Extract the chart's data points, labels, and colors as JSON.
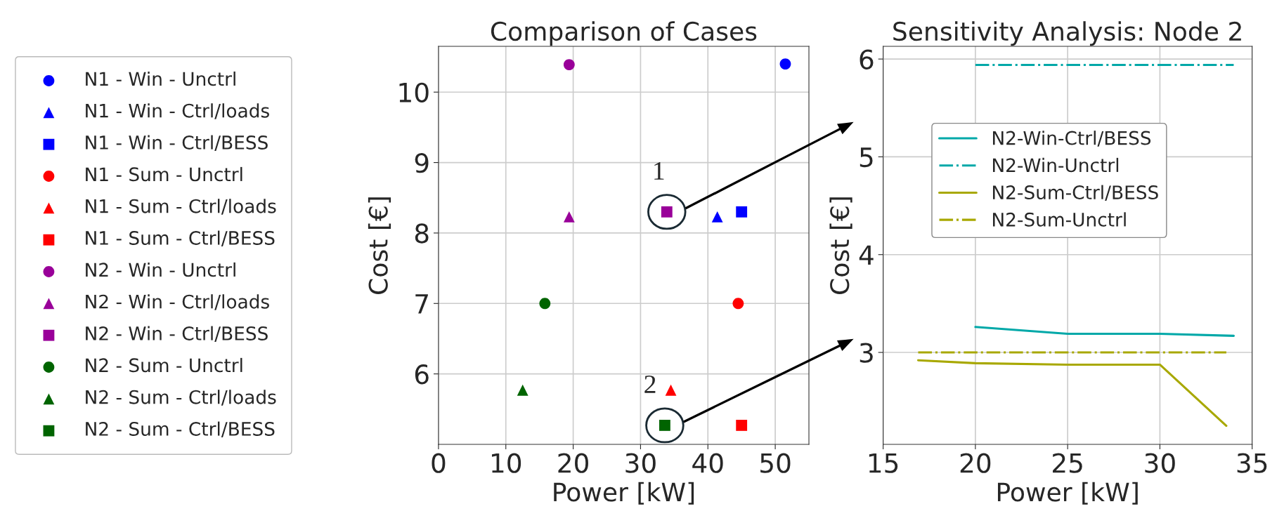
{
  "chart_data": [
    {
      "type": "scatter",
      "title": "Comparison of Cases",
      "xlabel": "Power [kW]",
      "ylabel": "Cost [€]",
      "xlim": [
        0,
        55
      ],
      "xticks": [
        0,
        10,
        20,
        30,
        40,
        50
      ],
      "ylim": [
        5.0,
        10.65
      ],
      "yticks": [
        6,
        7,
        8,
        9,
        10
      ],
      "grid": true,
      "legend": "left",
      "series": [
        {
          "name": "N1 - Win - Unctrl",
          "color": "#0000ff",
          "marker": "circle",
          "x": [
            51.5
          ],
          "values": [
            10.4
          ]
        },
        {
          "name": "N1 - Win - Ctrl/loads",
          "color": "#0000ff",
          "marker": "triangle",
          "x": [
            41.4
          ],
          "values": [
            8.23
          ]
        },
        {
          "name": "N1 - Win - Ctrl/BESS",
          "color": "#0000ff",
          "marker": "square",
          "x": [
            45.0
          ],
          "values": [
            8.3
          ]
        },
        {
          "name": "N1 - Sum - Unctrl",
          "color": "#ff0000",
          "marker": "circle",
          "x": [
            44.5
          ],
          "values": [
            7.0
          ]
        },
        {
          "name": "N1 - Sum - Ctrl/loads",
          "color": "#ff0000",
          "marker": "triangle",
          "x": [
            34.5
          ],
          "values": [
            5.77
          ]
        },
        {
          "name": "N1 - Sum - Ctrl/BESS",
          "color": "#ff0000",
          "marker": "square",
          "x": [
            45.0
          ],
          "values": [
            5.27
          ]
        },
        {
          "name": "N2 - Win - Unctrl",
          "color": "#990099",
          "marker": "circle",
          "x": [
            19.4
          ],
          "values": [
            10.39
          ]
        },
        {
          "name": "N2 - Win - Ctrl/loads",
          "color": "#990099",
          "marker": "triangle",
          "x": [
            19.4
          ],
          "values": [
            8.23
          ]
        },
        {
          "name": "N2 - Win - Ctrl/BESS",
          "color": "#990099",
          "marker": "square",
          "x": [
            33.9
          ],
          "values": [
            8.3
          ]
        },
        {
          "name": "N2 - Sum - Unctrl",
          "color": "#006400",
          "marker": "circle",
          "x": [
            15.8
          ],
          "values": [
            7.0
          ]
        },
        {
          "name": "N2 - Sum - Ctrl/loads",
          "color": "#006400",
          "marker": "triangle",
          "x": [
            12.5
          ],
          "values": [
            5.77
          ]
        },
        {
          "name": "N2 - Sum - Ctrl/BESS",
          "color": "#006400",
          "marker": "square",
          "x": [
            33.6
          ],
          "values": [
            5.27
          ]
        }
      ],
      "annotations": [
        {
          "text": "1",
          "x": 33.9,
          "y": 8.3
        },
        {
          "text": "2",
          "x": 33.6,
          "y": 5.27
        }
      ]
    },
    {
      "type": "line",
      "title": "Sensitivity Analysis: Node 2",
      "xlabel": "Power [kW]",
      "ylabel": "Cost [€]",
      "xlim": [
        15,
        35
      ],
      "xticks": [
        15,
        20,
        25,
        30,
        35
      ],
      "ylim": [
        2.06,
        6.13
      ],
      "yticks": [
        3,
        4,
        5,
        6
      ],
      "grid": true,
      "legend": "upper center",
      "series": [
        {
          "name": "N2-Win-Ctrl/BESS",
          "color": "#00a8a8",
          "line_style": "solid",
          "x": [
            20,
            25,
            30,
            34
          ],
          "values": [
            3.26,
            3.19,
            3.19,
            3.17
          ]
        },
        {
          "name": "N2-Win-Unctrl",
          "color": "#00a8a8",
          "line_style": "dashdot",
          "x": [
            20,
            25,
            30,
            34
          ],
          "values": [
            5.94,
            5.94,
            5.94,
            5.94
          ]
        },
        {
          "name": "N2-Sum-Ctrl/BESS",
          "color": "#a8a800",
          "line_style": "solid",
          "x": [
            16.9,
            20,
            25,
            30,
            33.6
          ],
          "values": [
            2.92,
            2.89,
            2.875,
            2.875,
            2.25
          ]
        },
        {
          "name": "N2-Sum-Unctrl",
          "color": "#a8a800",
          "line_style": "dashdot",
          "x": [
            16.9,
            20,
            25,
            30,
            33.6
          ],
          "values": [
            3.0,
            3.0,
            3.0,
            3.0,
            3.0
          ]
        }
      ]
    }
  ]
}
